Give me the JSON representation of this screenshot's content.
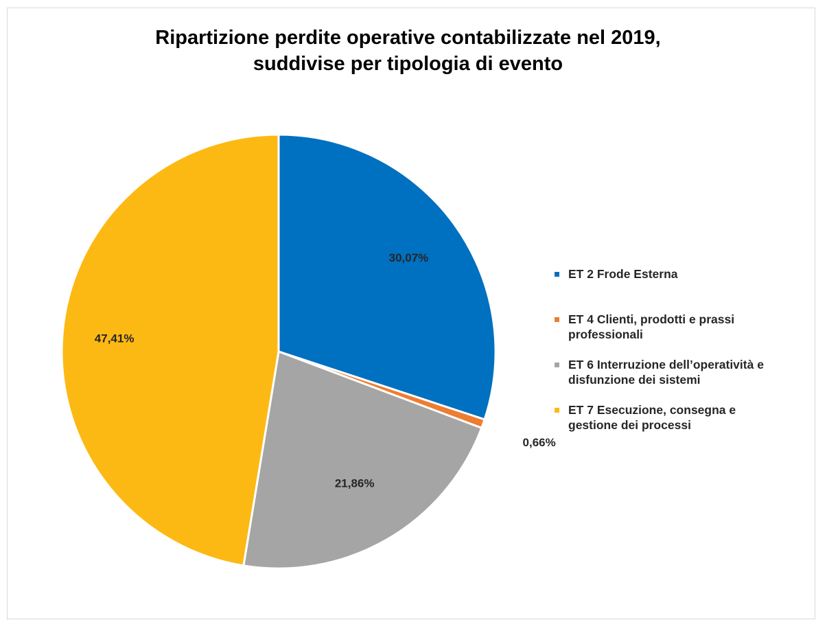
{
  "chart_data": {
    "type": "pie",
    "title": [
      "Ripartizione perdite operative contabilizzate nel 2019,",
      "suddivise per tipologia di evento"
    ],
    "legend_position": "right",
    "slices": [
      {
        "name": "ET 2 Frode Esterna",
        "legend_lines": [
          "ET 2 Frode Esterna"
        ],
        "value": 30.07,
        "label": "30,07%",
        "color": "#0070C0"
      },
      {
        "name": "ET 4 Clienti, prodotti e prassi professionali",
        "legend_lines": [
          "ET 4 Clienti, prodotti e prassi",
          "professionali"
        ],
        "value": 0.66,
        "label": "0,66%",
        "color": "#ED7D31"
      },
      {
        "name": "ET 6 Interruzione dell’operatività e disfunzione dei sistemi",
        "legend_lines": [
          "ET 6 Interruzione dell’operatività e",
          "disfunzione dei sistemi"
        ],
        "value": 21.86,
        "label": "21,86%",
        "color": "#A5A5A5"
      },
      {
        "name": "ET 7 Esecuzione, consegna e gestione dei processi",
        "legend_lines": [
          "ET 7 Esecuzione, consegna e",
          "gestione dei processi"
        ],
        "value": 47.41,
        "label": "47,41%",
        "color": "#FDB913"
      }
    ]
  }
}
